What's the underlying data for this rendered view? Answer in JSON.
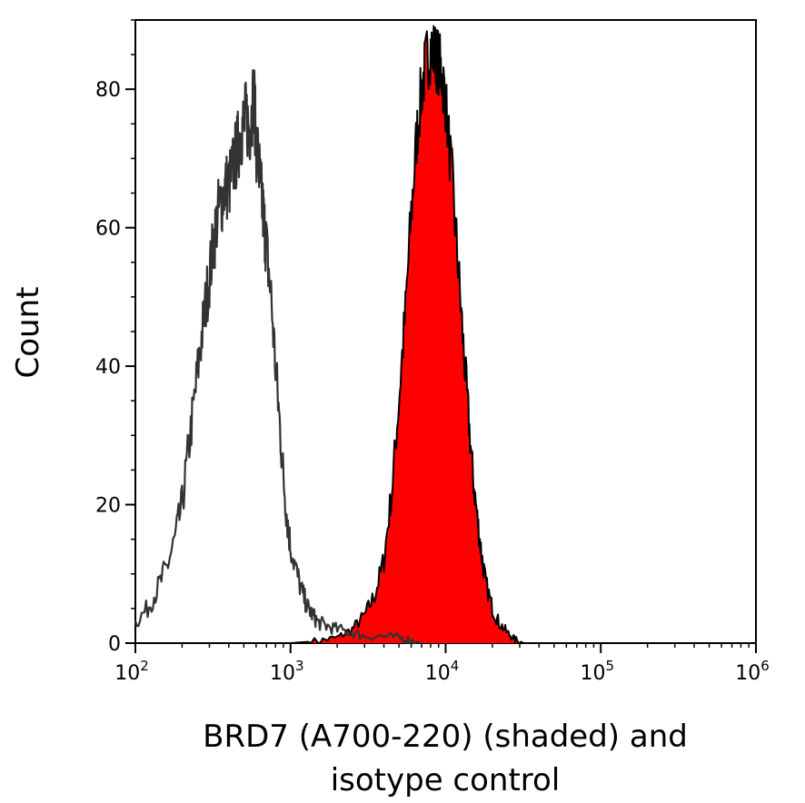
{
  "chart_data": {
    "type": "area",
    "xlabel_lines": [
      "BRD7 (A700-220) (shaded) and",
      "isotype control"
    ],
    "ylabel": "Count",
    "x_scale": "log",
    "xlim": [
      100,
      1000000
    ],
    "ylim": [
      0,
      90
    ],
    "x_ticks": [
      {
        "value": 100,
        "base": "10",
        "exp": "2"
      },
      {
        "value": 1000,
        "base": "10",
        "exp": "3"
      },
      {
        "value": 10000,
        "base": "10",
        "exp": "4"
      },
      {
        "value": 100000,
        "base": "10",
        "exp": "5"
      },
      {
        "value": 1000000,
        "base": "10",
        "exp": "6"
      }
    ],
    "y_ticks": [
      0,
      20,
      40,
      60,
      80
    ],
    "grid": false,
    "series": [
      {
        "fill": "#ff0000",
        "stroke": "#000000",
        "style": "shaded",
        "x": [
          100,
          400,
          1000,
          1500,
          2000,
          2500,
          3000,
          3500,
          4000,
          4500,
          5000,
          5500,
          6000,
          6500,
          7000,
          7500,
          8000,
          8500,
          9000,
          9500,
          10000,
          11000,
          12000,
          13000,
          14000,
          15000,
          16000,
          17000,
          18000,
          20000,
          22000,
          25000,
          28000,
          32000
        ],
        "y": [
          0,
          0,
          0,
          0.3,
          0.8,
          2,
          4,
          7,
          12,
          22,
          35,
          48,
          62,
          73,
          80,
          84,
          86,
          85,
          84,
          82,
          78,
          67,
          55,
          43,
          33,
          24,
          18,
          13,
          9,
          5,
          3,
          1.5,
          0.5,
          0
        ]
      },
      {
        "fill": "none",
        "stroke": "#333333",
        "style": "outline",
        "x": [
          100,
          120,
          140,
          160,
          180,
          200,
          220,
          240,
          260,
          280,
          300,
          320,
          340,
          360,
          380,
          400,
          420,
          440,
          460,
          480,
          500,
          520,
          540,
          560,
          580,
          600,
          620,
          640,
          660,
          680,
          700,
          750,
          800,
          850,
          900,
          950,
          1000,
          1100,
          1200,
          1300,
          1400,
          1500,
          1700,
          2000,
          2500,
          3000,
          4000,
          5000,
          6000,
          7000
        ],
        "y": [
          3,
          5,
          8,
          11,
          15,
          20,
          28,
          35,
          42,
          48,
          53,
          58,
          62,
          64,
          66,
          66,
          68,
          70,
          72,
          74,
          75,
          76,
          74,
          76,
          80,
          72,
          70,
          66,
          63,
          60,
          57,
          50,
          40,
          32,
          24,
          18,
          14,
          10,
          7,
          5,
          4,
          3,
          2.5,
          2,
          1.5,
          1,
          1,
          0.8,
          0.4,
          0
        ]
      }
    ]
  }
}
